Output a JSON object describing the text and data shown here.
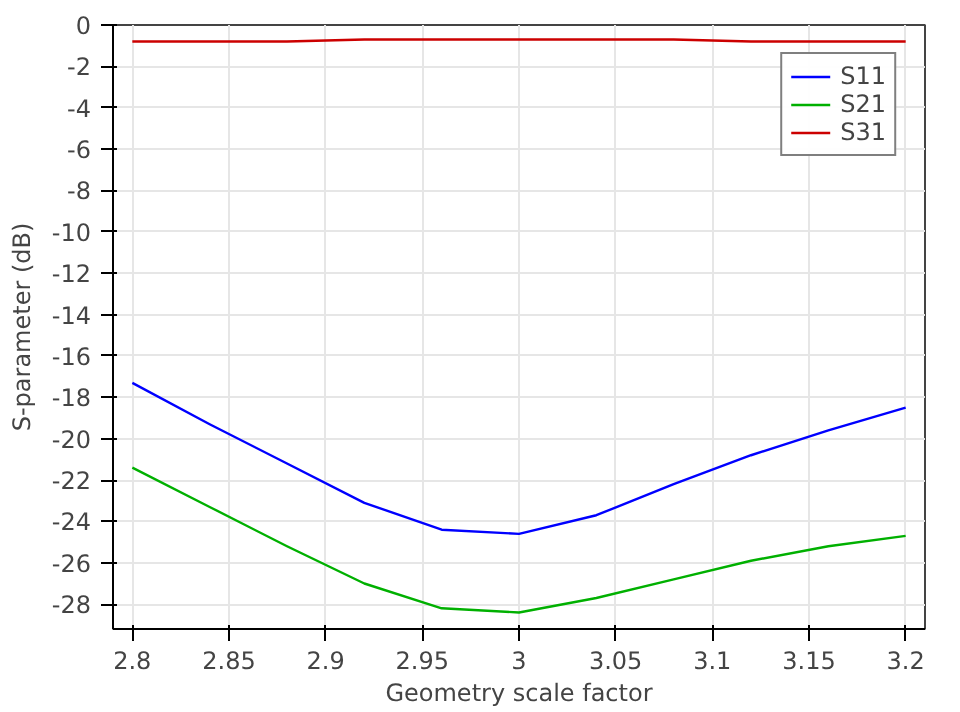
{
  "chart_data": {
    "type": "line",
    "xlabel": "Geometry scale factor",
    "ylabel": "S-parameter (dB)",
    "x": [
      2.8,
      2.84,
      2.88,
      2.92,
      2.96,
      3.0,
      3.04,
      3.08,
      3.12,
      3.16,
      3.2
    ],
    "series": [
      {
        "name": "S11",
        "color": "#0000ff",
        "values": [
          -17.3,
          -19.3,
          -21.2,
          -23.1,
          -24.4,
          -24.6,
          -23.7,
          -22.2,
          -20.8,
          -19.6,
          -18.5
        ]
      },
      {
        "name": "S21",
        "color": "#00b000",
        "values": [
          -21.4,
          -23.3,
          -25.2,
          -27.0,
          -28.2,
          -28.4,
          -27.7,
          -26.8,
          -25.9,
          -25.2,
          -24.7
        ]
      },
      {
        "name": "S31",
        "color": "#cc0000",
        "values": [
          -0.8,
          -0.8,
          -0.8,
          -0.7,
          -0.7,
          -0.7,
          -0.7,
          -0.7,
          -0.8,
          -0.8,
          -0.8
        ]
      }
    ],
    "xlim": [
      2.79,
      3.21
    ],
    "ylim": [
      -29.2,
      0
    ],
    "xticks": [
      2.8,
      2.85,
      2.9,
      2.95,
      3,
      3.05,
      3.1,
      3.15,
      3.2
    ],
    "yticks": [
      0,
      -2,
      -4,
      -6,
      -8,
      -10,
      -12,
      -14,
      -16,
      -18,
      -20,
      -22,
      -24,
      -26,
      -28
    ],
    "grid": true,
    "legend": "top right"
  }
}
